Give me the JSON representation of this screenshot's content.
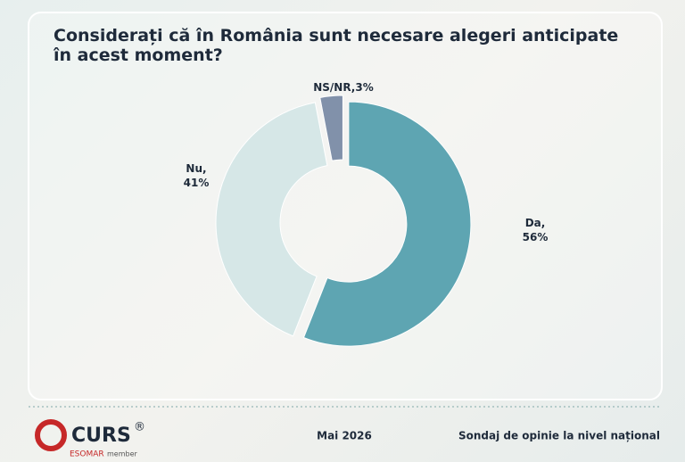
{
  "chart_data": {
    "type": "pie",
    "donut": true,
    "title": "Considerați că în România sunt necesare alegeri anticipate în acest moment?",
    "categories": [
      "Da,",
      "Nu,",
      "NS/NR,"
    ],
    "values": [
      56,
      41,
      3
    ],
    "value_labels": [
      "56%",
      "41%",
      "3%"
    ],
    "colors": [
      "#5ea5b2",
      "#d6e7e7",
      "#8191aa"
    ]
  },
  "footer": {
    "logo": "CURS",
    "registered": "®",
    "esomar": "ESOMAR",
    "member": "member",
    "date": "Mai 2026",
    "note": "Sondaj de opinie la nivel național"
  }
}
